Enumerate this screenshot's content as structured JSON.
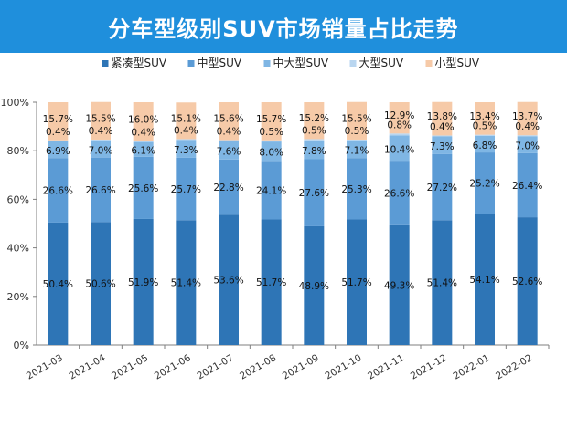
{
  "title": "分车型级别SUV市场销量占比走势",
  "chart_data": {
    "type": "bar",
    "stacked": true,
    "percent_stacked": true,
    "categories": [
      "2021-03",
      "2021-04",
      "2021-05",
      "2021-06",
      "2021-07",
      "2021-08",
      "2021-09",
      "2021-10",
      "2021-11",
      "2021-12",
      "2022-01",
      "2022-02"
    ],
    "series": [
      {
        "name": "紧凑型SUV",
        "color": "#2e75b6",
        "values": [
          50.4,
          50.6,
          51.9,
          51.4,
          53.6,
          51.7,
          48.9,
          51.7,
          49.3,
          51.4,
          54.1,
          52.6
        ]
      },
      {
        "name": "中型SUV",
        "color": "#5b9bd5",
        "values": [
          26.6,
          26.6,
          25.6,
          25.7,
          22.8,
          24.1,
          27.6,
          25.3,
          26.6,
          27.2,
          25.2,
          26.4
        ]
      },
      {
        "name": "中大型SUV",
        "color": "#7fb6e4",
        "values": [
          6.9,
          7.0,
          6.1,
          7.3,
          7.6,
          8.0,
          7.8,
          7.1,
          10.4,
          7.3,
          6.8,
          7.0
        ]
      },
      {
        "name": "大型SUV",
        "color": "#b9d6f0",
        "values": [
          0.4,
          0.4,
          0.4,
          0.4,
          0.4,
          0.5,
          0.5,
          0.5,
          0.8,
          0.4,
          0.5,
          0.4
        ]
      },
      {
        "name": "小型SUV",
        "color": "#f6caa8",
        "values": [
          15.7,
          15.5,
          16.0,
          15.1,
          15.6,
          15.7,
          15.2,
          15.5,
          12.9,
          13.8,
          13.4,
          13.7
        ]
      }
    ],
    "y_ticks": [
      "0%",
      "20%",
      "40%",
      "60%",
      "80%",
      "100%"
    ],
    "ylim": [
      0,
      100
    ],
    "xlabel": "",
    "ylabel": "",
    "grid": false,
    "legend_position": "top"
  }
}
